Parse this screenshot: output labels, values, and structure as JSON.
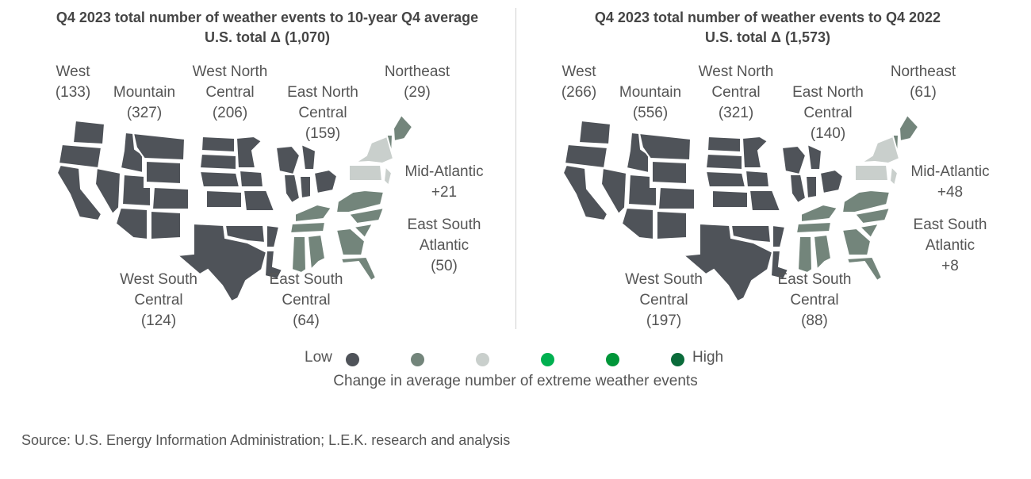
{
  "colors": {
    "low": "#4f5359",
    "mid_low": "#73857b",
    "neutral": "#c9cfcc",
    "mid_high": "#00b050",
    "high_mid": "#009639",
    "high": "#0a6b3a"
  },
  "maps": [
    {
      "title": "Q4 2023 total number of weather events to 10-year Q4 average",
      "total": "U.S. total Δ (1,070)",
      "regions": {
        "west": {
          "name": "West",
          "value": "(133)",
          "color": "#4f5359"
        },
        "mountain": {
          "name": "Mountain",
          "value": "(327)",
          "color": "#4f5359"
        },
        "west_north_central": {
          "name": "West North Central",
          "value": "(206)",
          "color": "#4f5359"
        },
        "east_north_central": {
          "name": "East North Central",
          "value": "(159)",
          "color": "#4f5359"
        },
        "northeast": {
          "name": "Northeast",
          "value": "(29)",
          "color": "#73857b"
        },
        "mid_atlantic": {
          "name": "Mid-Atlantic",
          "value": "+21",
          "color": "#c9cfcc"
        },
        "east_south_atlantic": {
          "name": "East South Atlantic",
          "value": "(50)",
          "color": "#73857b"
        },
        "west_south_central": {
          "name": "West South Central",
          "value": "(124)",
          "color": "#4f5359"
        },
        "east_south_central": {
          "name": "East South Central",
          "value": "(64)",
          "color": "#73857b"
        }
      }
    },
    {
      "title": "Q4 2023 total number of weather events to Q4 2022",
      "total": "U.S. total Δ (1,573)",
      "regions": {
        "west": {
          "name": "West",
          "value": "(266)",
          "color": "#4f5359"
        },
        "mountain": {
          "name": "Mountain",
          "value": "(556)",
          "color": "#4f5359"
        },
        "west_north_central": {
          "name": "West North Central",
          "value": "(321)",
          "color": "#4f5359"
        },
        "east_north_central": {
          "name": "East North Central",
          "value": "(140)",
          "color": "#4f5359"
        },
        "northeast": {
          "name": "Northeast",
          "value": "(61)",
          "color": "#73857b"
        },
        "mid_atlantic": {
          "name": "Mid-Atlantic",
          "value": "+48",
          "color": "#c9cfcc"
        },
        "east_south_atlantic": {
          "name": "East South Atlantic",
          "value": "+8",
          "color": "#73857b"
        },
        "west_south_central": {
          "name": "West South Central",
          "value": "(197)",
          "color": "#4f5359"
        },
        "east_south_central": {
          "name": "East South Central",
          "value": "(88)",
          "color": "#73857b"
        }
      }
    }
  ],
  "legend": {
    "low_label": "Low",
    "high_label": "High",
    "caption": "Change in average number of extreme weather events"
  },
  "source": "Source: U.S. Energy Information Administration; L.E.K. research and analysis"
}
